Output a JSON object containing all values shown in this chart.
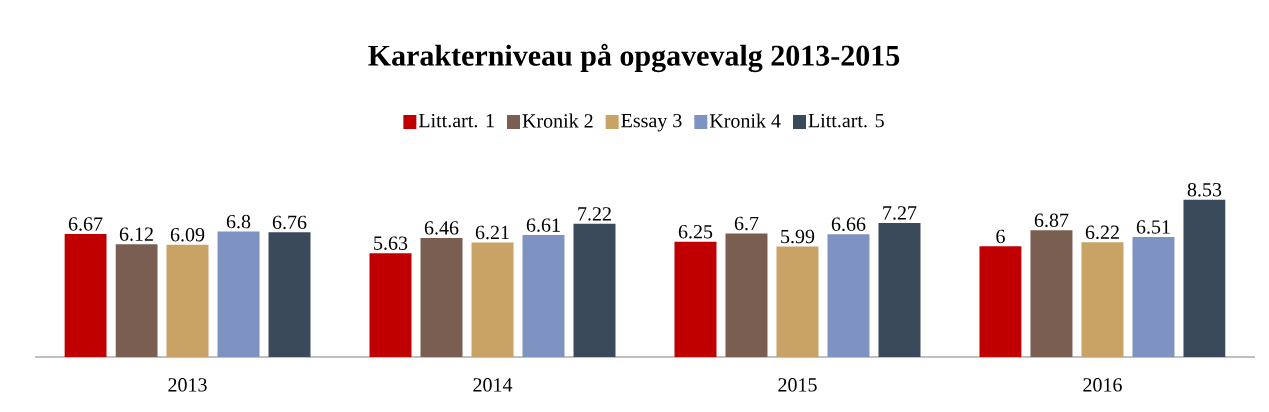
{
  "chart_data": {
    "type": "bar",
    "title": "Karakterniveau på opgavevalg 2013-2015",
    "categories": [
      "2013",
      "2014",
      "2015",
      "2016"
    ],
    "series": [
      {
        "name": "Litt.art. 1",
        "color": "#c00000",
        "values": [
          6.67,
          5.63,
          6.25,
          6
        ]
      },
      {
        "name": "Kronik 2",
        "color": "#7a5e52",
        "values": [
          6.12,
          6.46,
          6.7,
          6.87
        ]
      },
      {
        "name": "Essay 3",
        "color": "#c9a266",
        "values": [
          6.09,
          6.21,
          5.99,
          6.22
        ]
      },
      {
        "name": "Kronik 4",
        "color": "#7f93c2",
        "values": [
          6.8,
          6.61,
          6.66,
          6.51
        ]
      },
      {
        "name": "Litt.art. 5",
        "color": "#3b4a5a",
        "values": [
          6.76,
          7.22,
          7.27,
          8.53
        ]
      }
    ],
    "tick_labels": "x",
    "data_labels": true,
    "legend": "top",
    "grid": false
  }
}
